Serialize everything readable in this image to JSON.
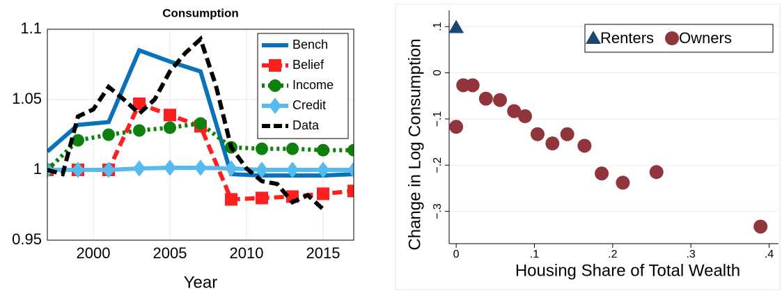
{
  "chart_data": [
    {
      "type": "line",
      "title": "Consumption",
      "x_label": "Year",
      "xlim": [
        1997,
        2017
      ],
      "xticks": [
        2000,
        2005,
        2010,
        2015
      ],
      "ylim": [
        0.95,
        1.1
      ],
      "yticks": [
        0.95,
        1,
        1.05,
        1.1
      ],
      "grid": true,
      "legend": "top-right",
      "series": [
        {
          "name": "Bench",
          "color": "#0a72ba",
          "style": "solid",
          "marker": "none",
          "x": [
            1997,
            1999,
            2001,
            2003,
            2005,
            2007,
            2009,
            2011,
            2013,
            2015,
            2017
          ],
          "values": [
            1.013,
            1.032,
            1.034,
            1.085,
            1.077,
            1.07,
            0.997,
            0.996,
            0.996,
            0.996,
            0.997
          ]
        },
        {
          "name": "Belief",
          "color": "#ff1f1f",
          "style": "dashed",
          "marker": "square",
          "x": [
            1997,
            1999,
            2001,
            2003,
            2005,
            2007,
            2009,
            2011,
            2013,
            2015,
            2017
          ],
          "values": [
            1.0,
            1.0,
            1.0,
            1.047,
            1.039,
            1.031,
            0.979,
            0.98,
            0.981,
            0.983,
            0.985
          ]
        },
        {
          "name": "Income",
          "color": "#0e800e",
          "style": "dotted",
          "marker": "circle",
          "x": [
            1997,
            1999,
            2001,
            2003,
            2005,
            2007,
            2009,
            2011,
            2013,
            2015,
            2017
          ],
          "values": [
            1.0,
            1.021,
            1.025,
            1.028,
            1.03,
            1.033,
            1.016,
            1.015,
            1.015,
            1.014,
            1.014
          ]
        },
        {
          "name": "Credit",
          "color": "#55bbee",
          "style": "solid",
          "marker": "diamond",
          "x": [
            1997,
            1999,
            2001,
            2003,
            2005,
            2007,
            2009,
            2011,
            2013,
            2015,
            2017
          ],
          "values": [
            1.0,
            1.0,
            1.0,
            1.001,
            1.0015,
            1.0015,
            1.001,
            1.0,
            1.0,
            1.0,
            1.0
          ]
        },
        {
          "name": "Data",
          "color": "#000000",
          "style": "dashed",
          "marker": "none",
          "x": [
            1997,
            1998,
            1999,
            2000,
            2001,
            2002,
            2003,
            2004,
            2005,
            2006,
            2007,
            2008,
            2009,
            2010,
            2011,
            2012,
            2013,
            2014,
            2015
          ],
          "values": [
            1.0,
            0.997,
            1.038,
            1.043,
            1.059,
            1.05,
            1.04,
            1.05,
            1.07,
            1.083,
            1.093,
            1.06,
            1.016,
            1.001,
            0.992,
            0.99,
            0.977,
            0.982,
            0.972
          ]
        }
      ]
    },
    {
      "type": "scatter",
      "x_label": "Housing Share of Total Wealth",
      "y_label": "Change in Log Consumption",
      "xlim": [
        -0.009,
        0.412
      ],
      "xticks": [
        0,
        {
          "value": 0.1,
          "label": ".1"
        },
        {
          "value": 0.2,
          "label": ".2"
        },
        {
          "value": 0.3,
          "label": ".3"
        },
        {
          "value": 0.4,
          "label": ".4"
        }
      ],
      "ylim": [
        -0.37,
        0.135
      ],
      "yticks": [
        {
          "value": -0.3,
          "label": "−.3"
        },
        {
          "value": -0.2,
          "label": "−.2"
        },
        {
          "value": -0.1,
          "label": "−.1"
        },
        0,
        {
          "value": 0.1,
          "label": ".1"
        }
      ],
      "grid": true,
      "legend": "top-right",
      "series": [
        {
          "name": "Renters",
          "color": "#1a476f",
          "marker": "triangle",
          "x": [
            0
          ],
          "values": [
            0.098
          ]
        },
        {
          "name": "Owners",
          "color": "#90353b",
          "marker": "circle",
          "x": [
            0,
            0.009,
            0.021,
            0.038,
            0.056,
            0.074,
            0.088,
            0.104,
            0.123,
            0.142,
            0.164,
            0.186,
            0.213,
            0.256,
            0.389
          ],
          "values": [
            -0.117,
            -0.027,
            -0.027,
            -0.056,
            -0.059,
            -0.083,
            -0.094,
            -0.133,
            -0.153,
            -0.133,
            -0.158,
            -0.218,
            -0.238,
            -0.215,
            -0.333
          ]
        }
      ]
    }
  ]
}
